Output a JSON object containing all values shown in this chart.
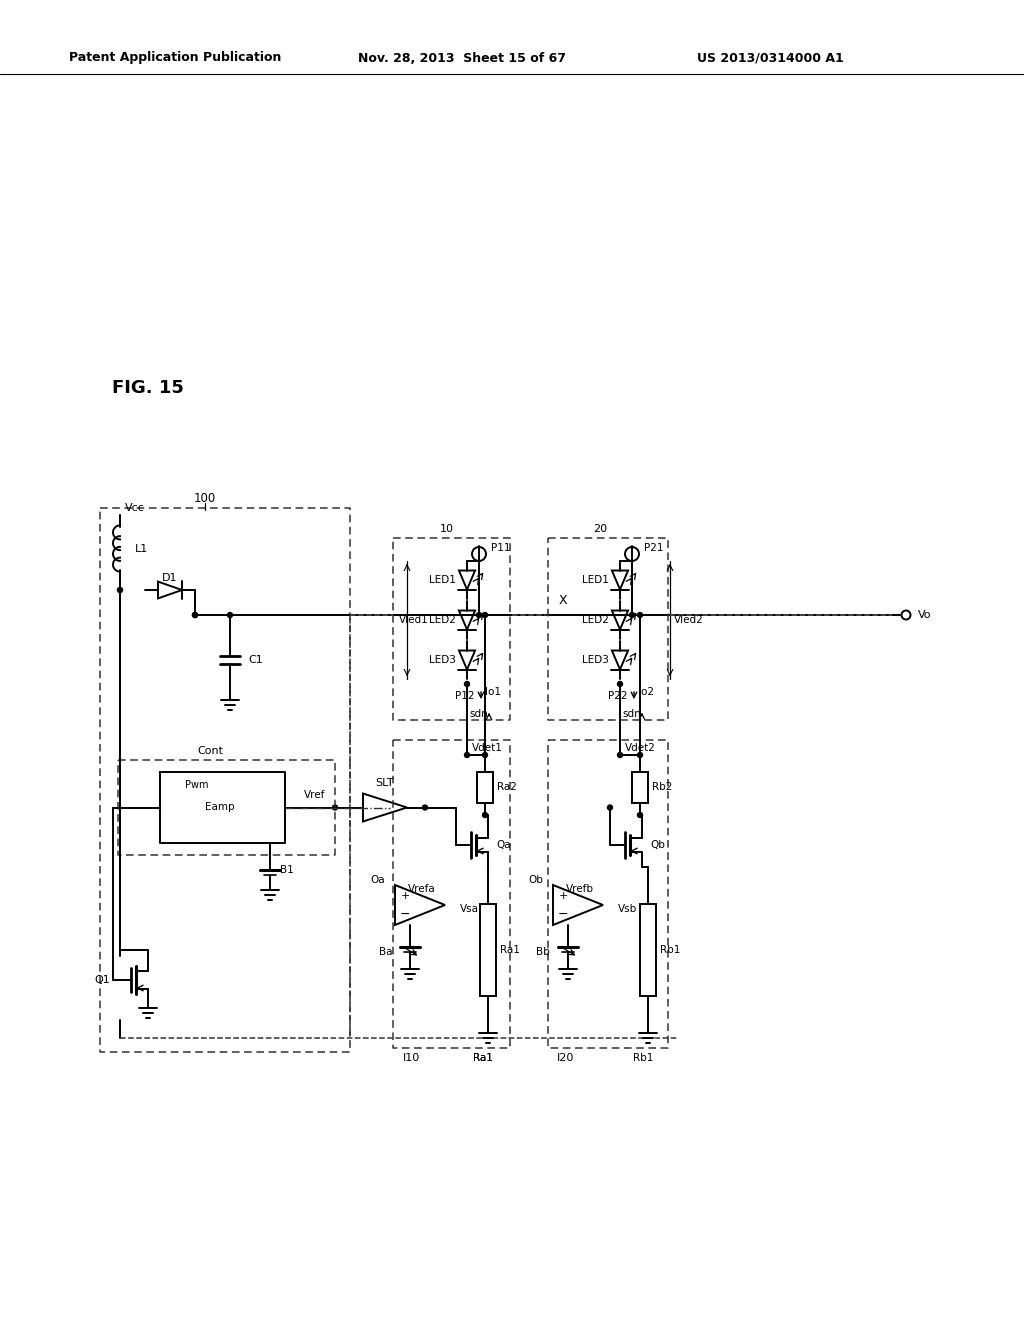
{
  "header1": "Patent Application Publication",
  "header2": "Nov. 28, 2013  Sheet 15 of 67",
  "header3": "US 2013/0314000 A1",
  "fig_label": "FIG. 15",
  "bg": "#ffffff",
  "lc": "#000000"
}
